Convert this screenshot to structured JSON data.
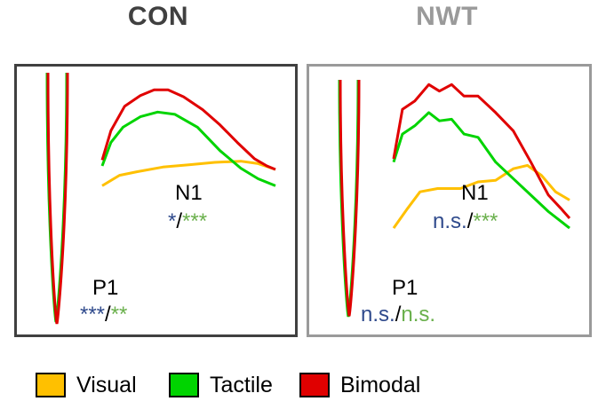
{
  "chart_data": [
    {
      "type": "line",
      "title": "CON",
      "components": [
        {
          "name": "N1",
          "stats": {
            "visual_vs_bimodal": "*",
            "tactile_vs_bimodal": "***"
          }
        },
        {
          "name": "P1",
          "stats": {
            "visual_vs_bimodal": "***",
            "tactile_vs_bimodal": "**"
          }
        }
      ],
      "series": [
        {
          "name": "Visual",
          "color": "#ffc000",
          "points": [
            [
              0.0,
              0.92
            ],
            [
              0.1,
              0.83
            ],
            [
              0.2,
              0.8
            ],
            [
              0.35,
              0.76
            ],
            [
              0.5,
              0.74
            ],
            [
              0.65,
              0.72
            ],
            [
              0.8,
              0.71
            ],
            [
              0.9,
              0.73
            ],
            [
              1.0,
              0.78
            ]
          ]
        },
        {
          "name": "Tactile",
          "color": "#00d400",
          "points": [
            [
              0.0,
              0.75
            ],
            [
              0.05,
              0.55
            ],
            [
              0.12,
              0.42
            ],
            [
              0.22,
              0.33
            ],
            [
              0.32,
              0.29
            ],
            [
              0.42,
              0.31
            ],
            [
              0.55,
              0.42
            ],
            [
              0.68,
              0.62
            ],
            [
              0.8,
              0.77
            ],
            [
              0.9,
              0.86
            ],
            [
              1.0,
              0.92
            ]
          ]
        },
        {
          "name": "Bimodal",
          "color": "#e00000",
          "points": [
            [
              0.0,
              0.7
            ],
            [
              0.05,
              0.45
            ],
            [
              0.13,
              0.24
            ],
            [
              0.22,
              0.15
            ],
            [
              0.3,
              0.1
            ],
            [
              0.38,
              0.1
            ],
            [
              0.47,
              0.16
            ],
            [
              0.58,
              0.27
            ],
            [
              0.68,
              0.4
            ],
            [
              0.78,
              0.55
            ],
            [
              0.88,
              0.69
            ],
            [
              0.95,
              0.75
            ],
            [
              1.0,
              0.78
            ]
          ]
        }
      ],
      "p1_trough": {
        "green_tip": 0.93,
        "red_tip": 1.0
      }
    },
    {
      "type": "line",
      "title": "NWT",
      "components": [
        {
          "name": "N1",
          "stats": {
            "visual_vs_bimodal": "n.s.",
            "tactile_vs_bimodal": "***"
          }
        },
        {
          "name": "P1",
          "stats": {
            "visual_vs_bimodal": "n.s.",
            "tactile_vs_bimodal": "n.s."
          }
        }
      ],
      "series": [
        {
          "name": "Visual",
          "color": "#ffc000",
          "points": [
            [
              0.0,
              0.92
            ],
            [
              0.08,
              0.8
            ],
            [
              0.15,
              0.7
            ],
            [
              0.25,
              0.68
            ],
            [
              0.38,
              0.68
            ],
            [
              0.48,
              0.64
            ],
            [
              0.58,
              0.63
            ],
            [
              0.68,
              0.56
            ],
            [
              0.76,
              0.54
            ],
            [
              0.84,
              0.6
            ],
            [
              0.92,
              0.7
            ],
            [
              1.0,
              0.75
            ]
          ]
        },
        {
          "name": "Tactile",
          "color": "#00d400",
          "points": [
            [
              0.0,
              0.52
            ],
            [
              0.05,
              0.35
            ],
            [
              0.12,
              0.3
            ],
            [
              0.2,
              0.22
            ],
            [
              0.26,
              0.27
            ],
            [
              0.33,
              0.26
            ],
            [
              0.4,
              0.35
            ],
            [
              0.48,
              0.37
            ],
            [
              0.58,
              0.52
            ],
            [
              0.68,
              0.62
            ],
            [
              0.78,
              0.72
            ],
            [
              0.88,
              0.82
            ],
            [
              1.0,
              0.92
            ]
          ]
        },
        {
          "name": "Bimodal",
          "color": "#e00000",
          "points": [
            [
              0.0,
              0.5
            ],
            [
              0.05,
              0.2
            ],
            [
              0.12,
              0.15
            ],
            [
              0.2,
              0.05
            ],
            [
              0.26,
              0.09
            ],
            [
              0.33,
              0.05
            ],
            [
              0.4,
              0.12
            ],
            [
              0.48,
              0.12
            ],
            [
              0.58,
              0.22
            ],
            [
              0.68,
              0.33
            ],
            [
              0.78,
              0.52
            ],
            [
              0.88,
              0.72
            ],
            [
              0.95,
              0.8
            ],
            [
              1.0,
              0.86
            ]
          ]
        }
      ],
      "p1_trough": {
        "green_tip": 1.0,
        "red_tip": 0.97
      }
    }
  ],
  "legend": [
    {
      "label": "Visual",
      "color": "#ffc000"
    },
    {
      "label": "Tactile",
      "color": "#00d400"
    },
    {
      "label": "Bimodal",
      "color": "#e00000"
    }
  ],
  "sig_colors": {
    "visual_vs_bimodal": "#2f4a8c",
    "tactile_vs_bimodal": "#6ab04c"
  }
}
